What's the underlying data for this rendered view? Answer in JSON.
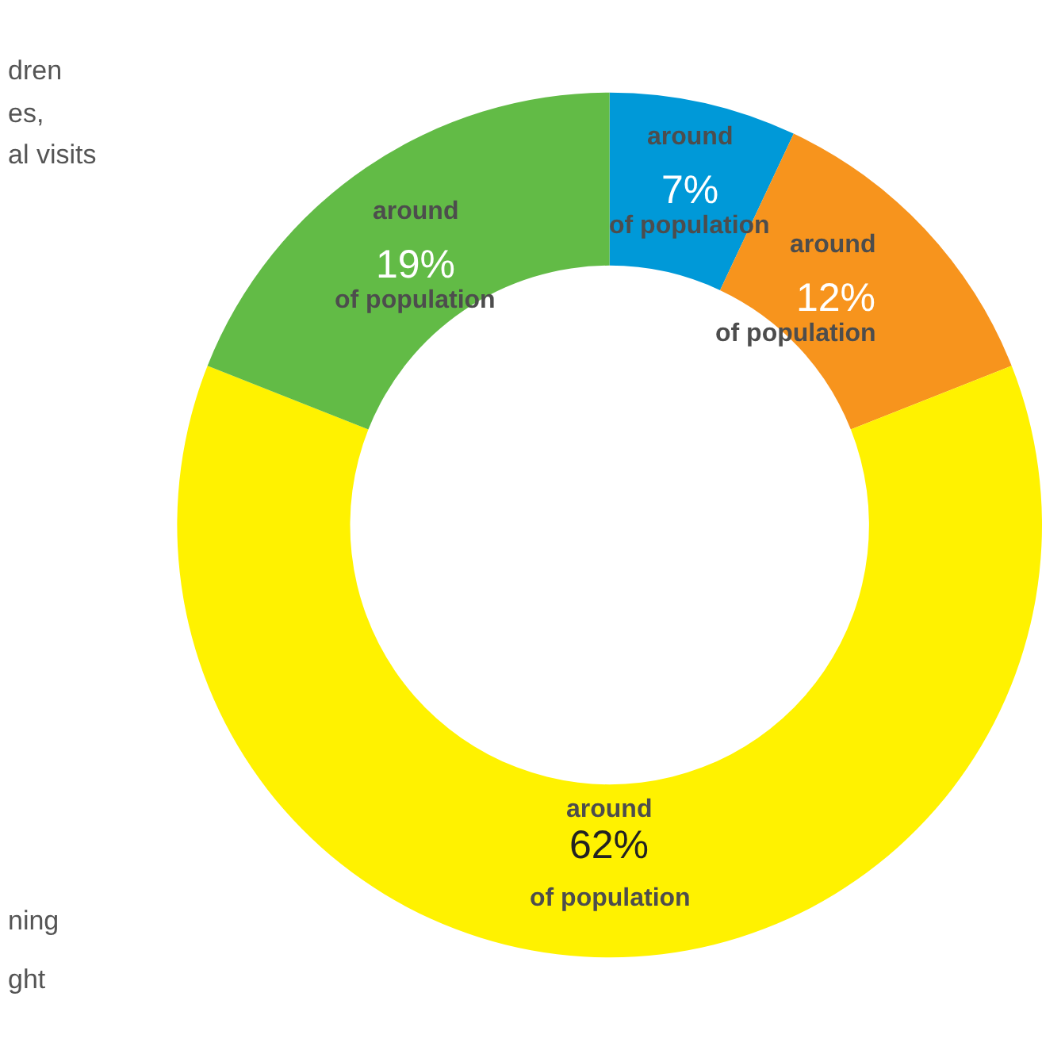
{
  "chart_data": {
    "type": "donut",
    "categories": [
      null,
      null,
      null,
      null
    ],
    "values": [
      7,
      12,
      62,
      19
    ],
    "colors": [
      "#0099d8",
      "#f7941d",
      "#fff200",
      "#62bb46"
    ],
    "value_labels": [
      "around\n7%\nof population",
      "around\n12%\nof population",
      "around\n62%\nof population",
      "around\n19%\nof population"
    ],
    "annotations": [
      "dren",
      "es,",
      "al visits",
      "ning",
      "ght"
    ],
    "legend": false
  }
}
